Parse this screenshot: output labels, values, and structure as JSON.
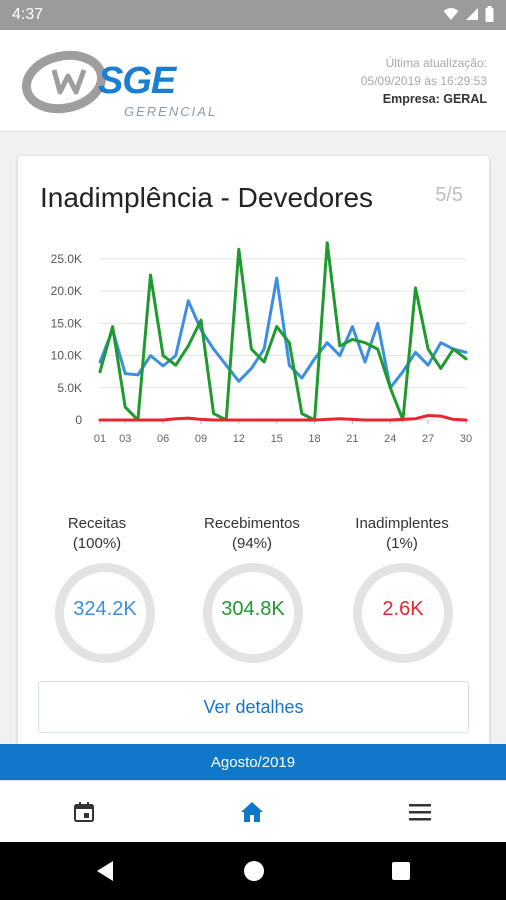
{
  "status_bar": {
    "time": "4:37"
  },
  "header": {
    "logo_main": "SGE",
    "logo_sub": "GERENCIAL",
    "update_label": "Última atualização:",
    "update_date": "05/09/2019 às 16:29:53",
    "company": "Empresa: GERAL"
  },
  "card": {
    "title": "Inadimplência - Devedores",
    "page": "5/5"
  },
  "colors": {
    "receitas": "#3b8ee0",
    "recebimentos": "#1e9a2e",
    "inadimplentes": "#e8262f",
    "accent": "#0f78c8"
  },
  "chart_data": {
    "type": "line",
    "x": [
      1,
      2,
      3,
      4,
      5,
      6,
      7,
      8,
      9,
      10,
      11,
      12,
      13,
      14,
      15,
      16,
      17,
      18,
      19,
      20,
      21,
      22,
      23,
      24,
      25,
      26,
      27,
      28,
      29,
      30
    ],
    "x_tick_labels": [
      "01",
      "03",
      "06",
      "09",
      "12",
      "15",
      "18",
      "21",
      "24",
      "27",
      "30"
    ],
    "x_ticks": [
      1,
      3,
      6,
      9,
      12,
      15,
      18,
      21,
      24,
      27,
      30
    ],
    "y_tick_labels": [
      "0",
      "5.0K",
      "10.0K",
      "15.0K",
      "20.0K",
      "25.0K"
    ],
    "ylim": [
      0,
      27000
    ],
    "grid": true,
    "series": [
      {
        "color": "#3b8ee0",
        "values": [
          9000,
          14000,
          7200,
          7000,
          10000,
          8400,
          10000,
          18500,
          14000,
          11000,
          8500,
          6000,
          8000,
          11000,
          22000,
          8500,
          6500,
          9500,
          12000,
          10000,
          14500,
          9000,
          15000,
          5000,
          7500,
          10500,
          8500,
          12000,
          11000,
          10500
        ]
      },
      {
        "color": "#1e9a2e",
        "values": [
          7500,
          14500,
          2000,
          0,
          22500,
          10000,
          8500,
          11500,
          15500,
          1000,
          0,
          26500,
          11000,
          9000,
          14500,
          12000,
          1000,
          0,
          27500,
          11500,
          12500,
          12000,
          11000,
          5000,
          0,
          20500,
          11000,
          8000,
          11000,
          9500
        ]
      },
      {
        "color": "#e8262f",
        "values": [
          0,
          0,
          0,
          0,
          0,
          0,
          200,
          300,
          100,
          0,
          0,
          0,
          0,
          0,
          0,
          0,
          0,
          0,
          100,
          200,
          100,
          0,
          0,
          0,
          100,
          200,
          700,
          600,
          100,
          0
        ]
      }
    ]
  },
  "stats": [
    {
      "label": "Receitas",
      "pct": "(100%)",
      "value": "324.2K",
      "color": "#3b8ee0"
    },
    {
      "label": "Recebimentos",
      "pct": "(94%)",
      "value": "304.8K",
      "color": "#1e9a2e"
    },
    {
      "label": "Inadimplentes",
      "pct": "(1%)",
      "value": "2.6K",
      "color": "#e8262f"
    }
  ],
  "details_button": "Ver detalhes",
  "period": "Agosto/2019",
  "bottom_nav": {
    "icons": [
      "calendar-icon",
      "home-icon",
      "menu-icon"
    ]
  }
}
